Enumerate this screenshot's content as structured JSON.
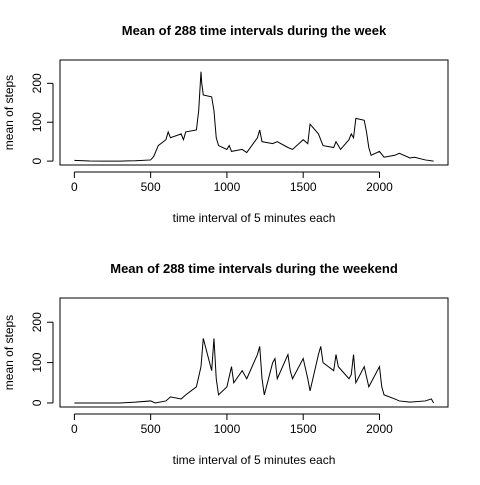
{
  "chart_data": [
    {
      "type": "line",
      "title": "Mean of 288 time intervals during the week",
      "x_label": "time interval of 5 minutes each",
      "y_label": "mean of steps",
      "color": "#000000",
      "x": [
        0,
        100,
        200,
        300,
        400,
        500,
        520,
        550,
        600,
        615,
        630,
        700,
        715,
        730,
        800,
        815,
        830,
        835,
        845,
        900,
        915,
        930,
        945,
        1000,
        1015,
        1030,
        1100,
        1130,
        1200,
        1215,
        1230,
        1300,
        1330,
        1400,
        1430,
        1500,
        1530,
        1545,
        1600,
        1630,
        1700,
        1715,
        1745,
        1800,
        1815,
        1830,
        1845,
        1900,
        1915,
        1930,
        1945,
        2000,
        2030,
        2100,
        2130,
        2200,
        2230,
        2300,
        2355
      ],
      "values": [
        2,
        0.3,
        0,
        0,
        1,
        3,
        12,
        40,
        55,
        75,
        60,
        70,
        55,
        75,
        80,
        130,
        230,
        200,
        170,
        165,
        130,
        60,
        40,
        30,
        40,
        25,
        30,
        22,
        60,
        80,
        50,
        45,
        50,
        35,
        30,
        55,
        45,
        95,
        70,
        40,
        35,
        50,
        30,
        55,
        70,
        60,
        110,
        105,
        75,
        35,
        15,
        25,
        10,
        15,
        20,
        8,
        10,
        3,
        0
      ],
      "xlim": [
        -94.2,
        2449.2
      ],
      "ylim": [
        -10,
        260
      ],
      "xticks": [
        0,
        500,
        1000,
        1500,
        2000
      ],
      "yticks": [
        0,
        100,
        200
      ]
    },
    {
      "type": "line",
      "title": "Mean of 288 time intervals during the weekend",
      "x_label": "time interval of 5 minutes each",
      "y_label": "mean of steps",
      "color": "#000000",
      "x": [
        0,
        100,
        200,
        300,
        400,
        500,
        530,
        600,
        630,
        700,
        730,
        800,
        830,
        845,
        900,
        915,
        930,
        945,
        1000,
        1030,
        1045,
        1100,
        1130,
        1200,
        1215,
        1230,
        1245,
        1300,
        1315,
        1330,
        1400,
        1415,
        1430,
        1500,
        1530,
        1545,
        1600,
        1615,
        1630,
        1700,
        1715,
        1730,
        1800,
        1815,
        1830,
        1845,
        1900,
        1930,
        2000,
        2015,
        2030,
        2100,
        2130,
        2200,
        2300,
        2340,
        2355
      ],
      "values": [
        0,
        0,
        0,
        0,
        2,
        5,
        0,
        5,
        15,
        10,
        20,
        40,
        90,
        160,
        80,
        160,
        60,
        20,
        40,
        90,
        50,
        80,
        60,
        120,
        140,
        60,
        20,
        100,
        110,
        60,
        120,
        80,
        60,
        110,
        60,
        30,
        120,
        140,
        100,
        80,
        120,
        90,
        60,
        70,
        120,
        50,
        90,
        40,
        90,
        40,
        20,
        10,
        5,
        2,
        5,
        10,
        0
      ],
      "xlim": [
        -94.2,
        2449.2
      ],
      "ylim": [
        -10,
        260
      ],
      "xticks": [
        0,
        500,
        1000,
        1500,
        2000
      ],
      "yticks": [
        0,
        100,
        200
      ]
    }
  ]
}
